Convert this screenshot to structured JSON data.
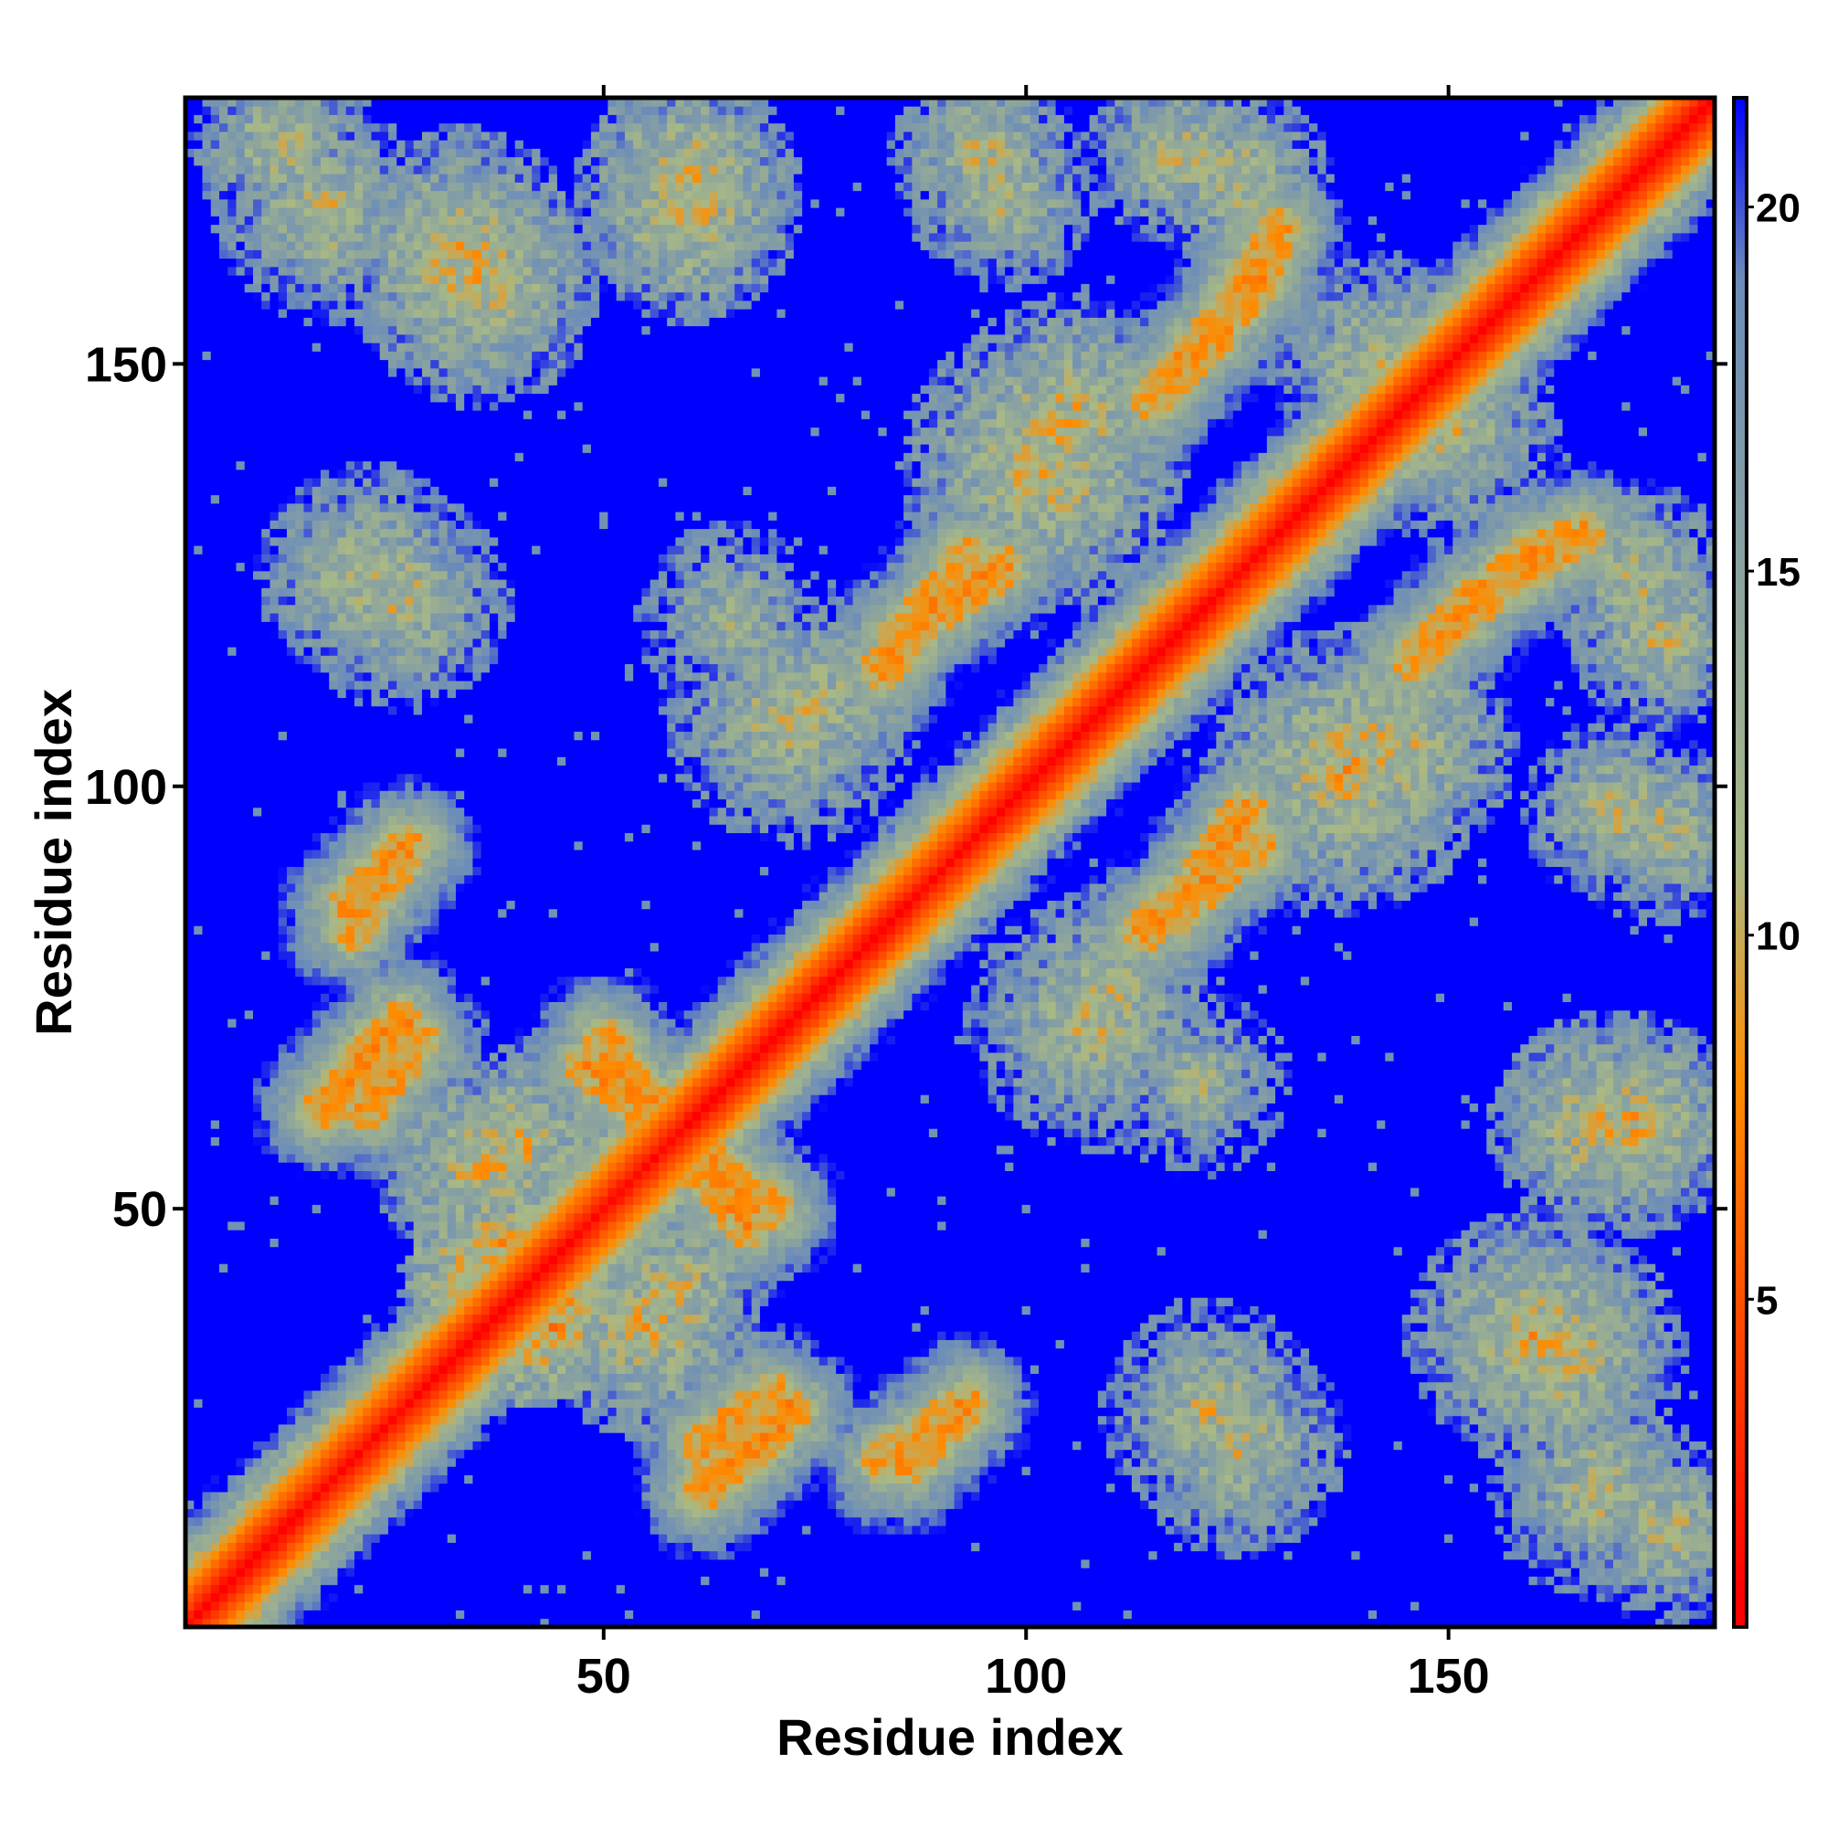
{
  "chart_data": {
    "type": "heatmap",
    "title": "",
    "xlabel": "Residue index",
    "ylabel": "Residue index",
    "n_residues": 181,
    "xlim": [
      1,
      181
    ],
    "ylim": [
      1,
      181
    ],
    "x_ticks": [
      50,
      100,
      150
    ],
    "y_ticks": [
      50,
      100,
      150
    ],
    "colorbar": {
      "range": [
        0.5,
        21.5
      ],
      "ticks": [
        5,
        10,
        15,
        20
      ],
      "colors": [
        "#ff0000",
        "#ff8c00",
        "#a9b985",
        "#6b8cba",
        "#0000ff"
      ],
      "stops": [
        1,
        8,
        11,
        19,
        21.5
      ]
    },
    "structure": {
      "diagonal_width": 6,
      "cutoff": 21.5,
      "helices": [
        [
          2,
          14
        ],
        [
          28,
          46
        ],
        [
          60,
          86
        ],
        [
          95,
          122
        ],
        [
          130,
          181
        ]
      ],
      "contact_bands": [
        {
          "x": [
            67,
            50
          ],
          "y": [
            48,
            70
          ],
          "distance": 6.5,
          "width": 2.5
        },
        {
          "x": [
            62,
            70
          ],
          "y": [
            22,
            28
          ],
          "distance": 6.5,
          "width": 2.5
        },
        {
          "x": [
            83,
            92
          ],
          "y": [
            20,
            26
          ],
          "distance": 7,
          "width": 2.5
        },
        {
          "x": [
            17,
            26
          ],
          "y": [
            62,
            72
          ],
          "distance": 6,
          "width": 2.5
        },
        {
          "x": [
            20,
            27
          ],
          "y": [
            86,
            93
          ],
          "distance": 6.5,
          "width": 2.5
        },
        {
          "x": [
            118,
            126
          ],
          "y": [
            85,
            97
          ],
          "distance": 6.5,
          "width": 2.5
        },
        {
          "x": [
            122,
            130
          ],
          "y": [
            153,
            166
          ],
          "distance": 6.5,
          "width": 2.5
        },
        {
          "x": [
            146,
            160
          ],
          "y": [
            115,
            128
          ],
          "distance": 6.5,
          "width": 2.5
        },
        {
          "x": [
            83,
            93
          ],
          "y": [
            114,
            127
          ],
          "distance": 6.5,
          "width": 2.5
        }
      ],
      "contact_clusters": [
        {
          "x": 38,
          "y": 42,
          "r": 6,
          "distance": 7
        },
        {
          "x": 33,
          "y": 163,
          "r": 8,
          "distance": 10
        },
        {
          "x": 60,
          "y": 168,
          "r": 7,
          "distance": 10
        },
        {
          "x": 17,
          "y": 168,
          "r": 7,
          "distance": 11
        },
        {
          "x": 22,
          "y": 125,
          "r": 7,
          "distance": 11
        },
        {
          "x": 105,
          "y": 143,
          "r": 8,
          "distance": 10
        },
        {
          "x": 97,
          "y": 170,
          "r": 6,
          "distance": 11
        },
        {
          "x": 125,
          "y": 172,
          "r": 6,
          "distance": 11
        },
        {
          "x": 160,
          "y": 35,
          "r": 8,
          "distance": 10
        },
        {
          "x": 172,
          "y": 60,
          "r": 7,
          "distance": 10
        },
        {
          "x": 176,
          "y": 12,
          "r": 6,
          "distance": 11
        },
        {
          "x": 138,
          "y": 102,
          "r": 9,
          "distance": 10
        },
        {
          "x": 122,
          "y": 26,
          "r": 7,
          "distance": 11
        },
        {
          "x": 108,
          "y": 72,
          "r": 8,
          "distance": 11
        },
        {
          "x": 55,
          "y": 36,
          "r": 7,
          "distance": 10
        },
        {
          "x": 40,
          "y": 58,
          "r": 6,
          "distance": 10
        },
        {
          "x": 175,
          "y": 95,
          "r": 6,
          "distance": 11
        },
        {
          "x": 175,
          "y": 118,
          "r": 6,
          "distance": 11
        },
        {
          "x": 75,
          "y": 110,
          "r": 7,
          "distance": 11
        },
        {
          "x": 65,
          "y": 120,
          "r": 6,
          "distance": 12
        },
        {
          "x": 142,
          "y": 150,
          "r": 7,
          "distance": 11
        }
      ]
    }
  }
}
